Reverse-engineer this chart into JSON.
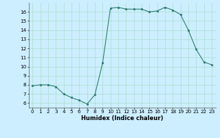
{
  "x": [
    0,
    1,
    2,
    3,
    4,
    5,
    6,
    7,
    8,
    9,
    10,
    11,
    12,
    13,
    14,
    15,
    16,
    17,
    18,
    19,
    20,
    21,
    22,
    23
  ],
  "y": [
    7.9,
    8.0,
    8.0,
    7.8,
    7.0,
    6.6,
    6.3,
    5.9,
    6.9,
    10.4,
    16.4,
    16.5,
    16.3,
    16.3,
    16.3,
    16.0,
    16.1,
    16.5,
    16.2,
    15.7,
    14.0,
    11.9,
    10.5,
    10.2
  ],
  "xlabel": "Humidex (Indice chaleur)",
  "xlim": [
    -0.5,
    23.5
  ],
  "ylim": [
    5.5,
    17.0
  ],
  "yticks": [
    6,
    7,
    8,
    9,
    10,
    11,
    12,
    13,
    14,
    15,
    16
  ],
  "xticks": [
    0,
    1,
    2,
    3,
    4,
    5,
    6,
    7,
    8,
    9,
    10,
    11,
    12,
    13,
    14,
    15,
    16,
    17,
    18,
    19,
    20,
    21,
    22,
    23
  ],
  "xtick_labels": [
    "0",
    "1",
    "2",
    "3",
    "4",
    "5",
    "6",
    "7",
    "8",
    "9",
    "10",
    "11",
    "12",
    "13",
    "14",
    "15",
    "16",
    "17",
    "18",
    "19",
    "20",
    "21",
    "22",
    "23"
  ],
  "line_color": "#2e7d6e",
  "marker_color": "#2e7d6e",
  "bg_color": "#cceeff",
  "grid_color": "#aaddcc",
  "xlabel_fontsize": 6.0,
  "tick_fontsize": 5.2
}
